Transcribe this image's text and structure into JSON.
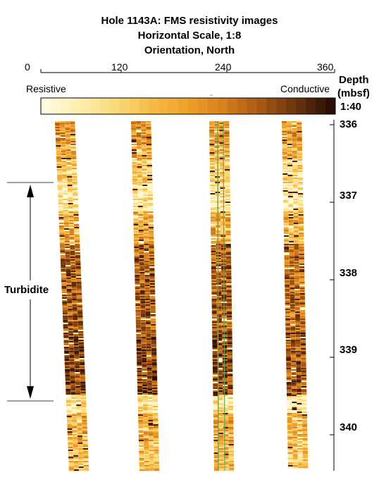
{
  "header": {
    "title_line1": "Hole 1143A: FMS resistivity images",
    "title_line2": "Horizontal Scale, 1:8",
    "title_line3": "Orientation, North"
  },
  "orientation_scale": {
    "ticks": [
      {
        "label": "0",
        "value": 0
      },
      {
        "label": "120",
        "value": 120
      },
      {
        "label": "240",
        "value": 240
      },
      {
        "label": "360",
        "value": 360
      }
    ]
  },
  "colorbar": {
    "left_label": "Resistive",
    "right_label": "Conductive",
    "colors": {
      "resistive": "#fffbe0",
      "mid": "#f2a531",
      "conductive": "#2a1004"
    }
  },
  "depth_axis": {
    "label_line1": "Depth",
    "label_line2": "(mbsf)",
    "scale_label": "1:40",
    "ticks": [
      {
        "label": "336",
        "value": 336
      },
      {
        "label": "337",
        "value": 337
      },
      {
        "label": "338",
        "value": 338
      },
      {
        "label": "339",
        "value": 339
      },
      {
        "label": "340",
        "value": 340
      }
    ]
  },
  "annotation": {
    "label": "Turbidite",
    "top_depth": 336.8,
    "bottom_depth": 339.6
  },
  "image_pads": {
    "count": 4,
    "line_color": "#6aa84f"
  }
}
